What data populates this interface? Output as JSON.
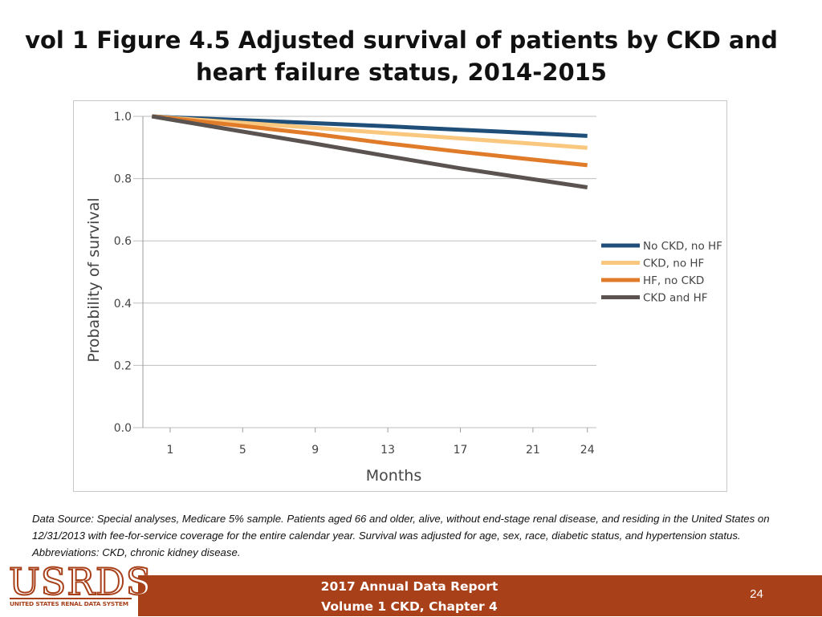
{
  "slide": {
    "title": "vol 1 Figure 4.5 Adjusted survival of patients by CKD and heart failure status, 2014-2015",
    "source_note": "Data Source: Special analyses, Medicare 5% sample. Patients aged 66 and older, alive, without end-stage renal disease, and residing in the United States on 12/31/2013 with fee-for-service coverage for the entire calendar year. Survival was adjusted for age, sex, race, diabetic status, and hypertension status. Abbreviations: CKD, chronic kidney disease."
  },
  "footer": {
    "logo_text": "USRDS",
    "logo_subtext": "UNITED STATES RENAL DATA SYSTEM",
    "report_line1": "2017 Annual Data Report",
    "report_line2": "Volume 1 CKD, Chapter 4",
    "page_number": "24"
  },
  "chart_data": {
    "type": "line",
    "title": "",
    "xlabel": "Months",
    "ylabel": "Probability of survival",
    "xlim": [
      -0.5,
      24.5
    ],
    "ylim": [
      0,
      1.0
    ],
    "x_ticks": [
      1,
      5,
      9,
      13,
      17,
      21,
      24
    ],
    "y_ticks": [
      "0.0",
      "0.2",
      "0.4",
      "0.6",
      "0.8",
      "1.0"
    ],
    "grid": "horizontal",
    "legend_position": "right",
    "x": [
      0,
      1,
      5,
      9,
      13,
      17,
      21,
      24
    ],
    "series": [
      {
        "name": "No CKD, no HF",
        "color": "#1f4e79",
        "values": [
          1.0,
          0.997,
          0.988,
          0.978,
          0.968,
          0.957,
          0.946,
          0.937
        ]
      },
      {
        "name": "CKD, no HF",
        "color": "#f9c77e",
        "values": [
          1.0,
          0.995,
          0.979,
          0.963,
          0.946,
          0.929,
          0.912,
          0.899
        ]
      },
      {
        "name": "HF, no CKD",
        "color": "#e07b2a",
        "values": [
          1.0,
          0.994,
          0.969,
          0.943,
          0.913,
          0.886,
          0.861,
          0.843
        ]
      },
      {
        "name": "CKD and HF",
        "color": "#5a5350",
        "values": [
          1.0,
          0.99,
          0.951,
          0.912,
          0.872,
          0.833,
          0.798,
          0.772
        ]
      }
    ]
  }
}
